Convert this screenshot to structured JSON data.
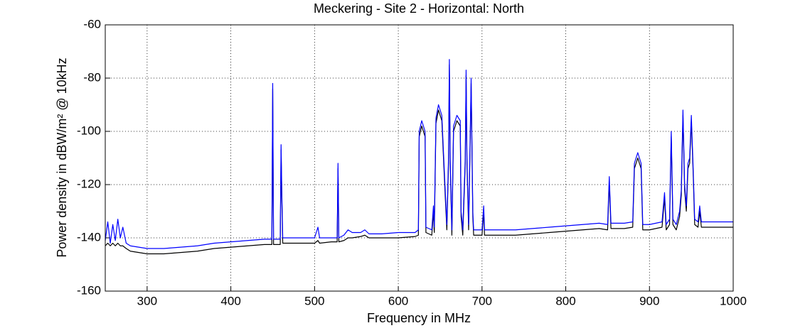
{
  "chart_data": {
    "type": "line",
    "title": "Meckering - Site 2 - Horizontal: North",
    "xlabel": "Frequency in MHz",
    "ylabel": "Power density in dBW/m² @ 10kHz",
    "xlim": [
      250,
      1000
    ],
    "xticks": [
      300,
      400,
      500,
      600,
      700,
      800,
      900,
      1000
    ],
    "ylim": [
      -160,
      -60
    ],
    "yticks": [
      -160,
      -140,
      -120,
      -100,
      -80,
      -60
    ],
    "grid": true,
    "x": [
      250,
      253,
      256,
      259,
      262,
      265,
      268,
      271,
      275,
      280,
      290,
      300,
      320,
      340,
      360,
      380,
      400,
      420,
      440,
      449,
      450,
      451,
      459,
      460,
      461,
      462,
      480,
      500,
      504,
      506,
      520,
      527,
      528,
      529,
      535,
      540,
      545,
      555,
      560,
      565,
      580,
      600,
      620,
      624,
      625,
      628,
      632,
      633,
      640,
      642,
      643,
      645,
      648,
      652,
      656,
      658,
      660,
      661,
      662,
      664,
      666,
      670,
      674,
      675,
      677,
      680,
      681,
      682,
      684,
      686,
      687,
      689,
      690,
      700,
      702,
      703,
      720,
      740,
      760,
      780,
      800,
      820,
      840,
      850,
      852,
      854,
      870,
      880,
      882,
      886,
      890,
      892,
      900,
      915,
      918,
      920,
      924,
      926,
      928,
      932,
      936,
      938,
      940,
      942,
      944,
      946,
      948,
      950,
      952,
      954,
      958,
      960,
      962,
      980,
      1000
    ],
    "series": [
      {
        "color": "#000000",
        "values": [
          -143,
          -142,
          -143,
          -142,
          -143,
          -142,
          -143,
          -143,
          -144,
          -145,
          -145.5,
          -146,
          -146,
          -145.5,
          -145,
          -144,
          -143.5,
          -143,
          -142.5,
          -142.5,
          -84,
          -142.5,
          -142.5,
          -107,
          -127,
          -142,
          -142,
          -142,
          -141,
          -142,
          -141.5,
          -141.5,
          -114,
          -141.5,
          -141,
          -140,
          -140,
          -139.5,
          -139,
          -140,
          -140,
          -140,
          -139.5,
          -139,
          -102,
          -98,
          -102,
          -138,
          -139,
          -130,
          -138,
          -97,
          -92,
          -96,
          -124,
          -137,
          -112,
          -75,
          -112,
          -139,
          -100,
          -96,
          -98,
          -132,
          -139,
          -112,
          -79,
          -112,
          -137,
          -102,
          -82,
          -132,
          -139,
          -139,
          -130,
          -139,
          -139,
          -139,
          -138.5,
          -138,
          -137.5,
          -137,
          -136.5,
          -137,
          -119,
          -136.5,
          -136.5,
          -136,
          -114,
          -110,
          -114,
          -137,
          -137,
          -136,
          -125,
          -137,
          -135,
          -102,
          -135,
          -137,
          -132,
          -124,
          -94,
          -122,
          -130,
          -114,
          -112,
          -96,
          -114,
          -135,
          -136,
          -130,
          -136,
          -136,
          -136
        ]
      },
      {
        "color": "#0000ff",
        "values": [
          -141,
          -134,
          -142,
          -135,
          -141,
          -133,
          -140,
          -136,
          -142,
          -143,
          -143.5,
          -144,
          -144,
          -143.5,
          -143,
          -142,
          -141.5,
          -141,
          -140.5,
          -140.5,
          -82,
          -140.5,
          -140.5,
          -105,
          -125,
          -140,
          -140,
          -140,
          -136,
          -140,
          -140,
          -140,
          -112,
          -140,
          -139,
          -137,
          -138,
          -138,
          -137,
          -138.5,
          -138.5,
          -138,
          -138,
          -137,
          -100,
          -96,
          -100,
          -136,
          -137,
          -128,
          -136,
          -95,
          -90,
          -94,
          -122,
          -135,
          -110,
          -73,
          -110,
          -137,
          -98,
          -94,
          -96,
          -130,
          -137,
          -110,
          -77,
          -110,
          -135,
          -100,
          -80,
          -130,
          -137,
          -137,
          -128,
          -137,
          -137,
          -137,
          -136.5,
          -136,
          -135.5,
          -135,
          -134.5,
          -135,
          -117,
          -134.5,
          -134.5,
          -134,
          -112,
          -108,
          -112,
          -135,
          -135,
          -134,
          -123,
          -135,
          -133,
          -100,
          -133,
          -135,
          -130,
          -122,
          -92,
          -120,
          -128,
          -112,
          -110,
          -94,
          -112,
          -133,
          -134,
          -128,
          -134,
          -134,
          -134
        ]
      }
    ]
  }
}
